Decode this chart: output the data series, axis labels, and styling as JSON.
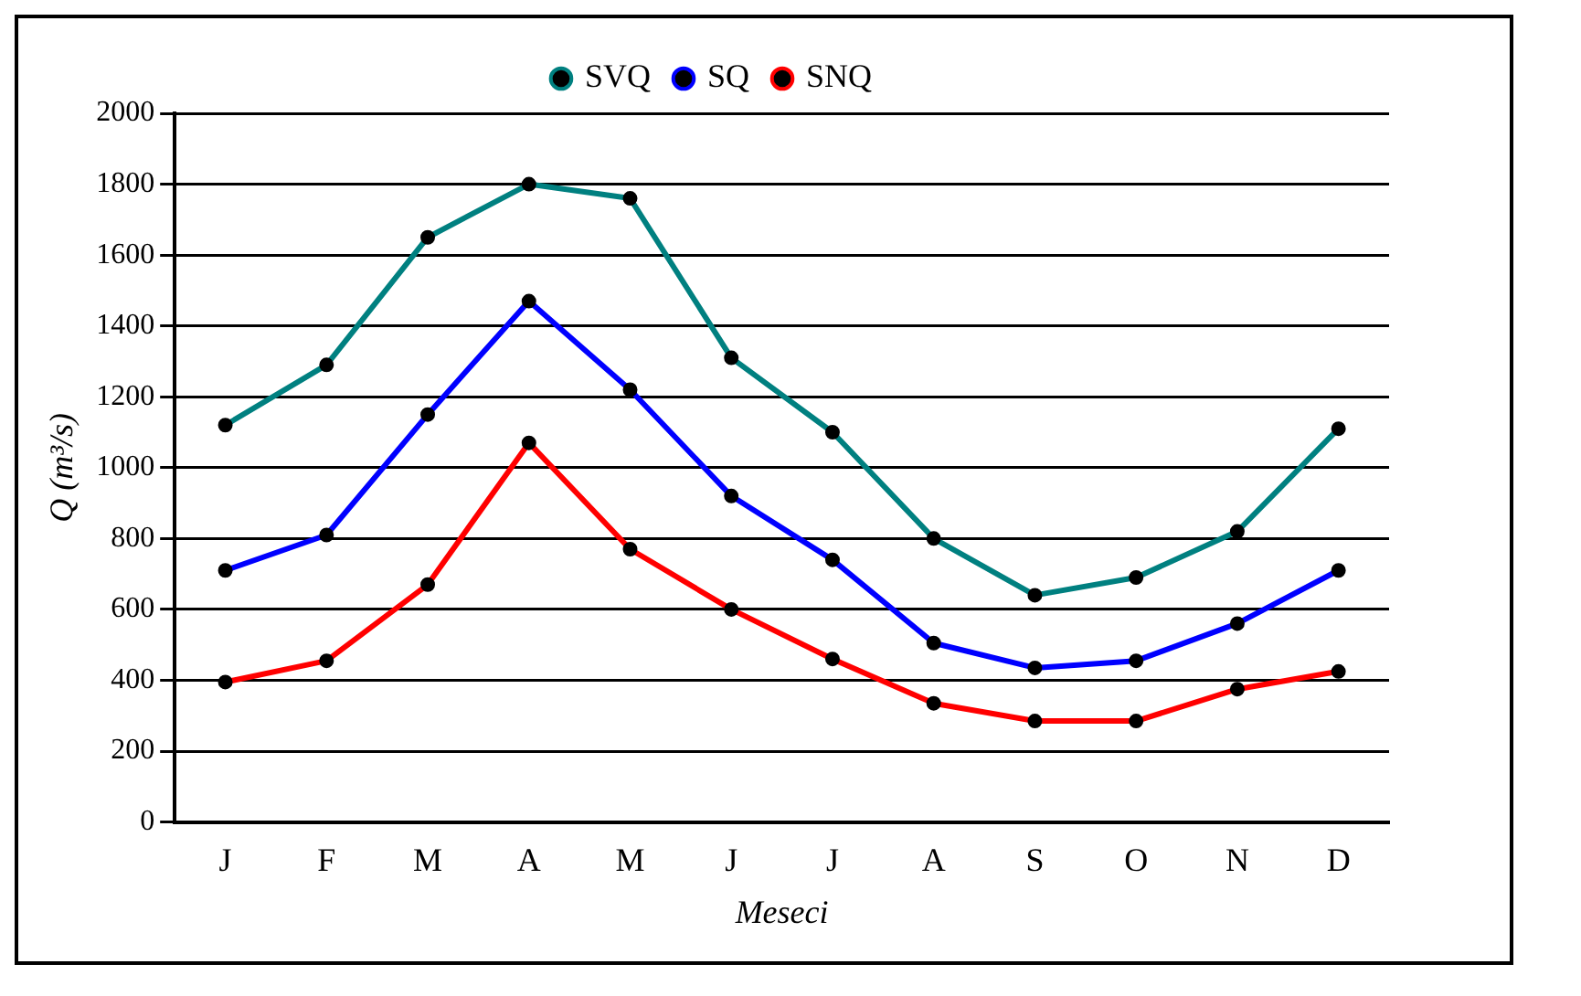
{
  "chart_data": {
    "type": "line",
    "xlabel": "Meseci",
    "ylabel": "Q (m³/s)",
    "categories": [
      "J",
      "F",
      "M",
      "A",
      "M",
      "J",
      "J",
      "A",
      "S",
      "O",
      "N",
      "D"
    ],
    "series": [
      {
        "name": "SVQ",
        "color": "#008080",
        "values": [
          1120,
          1290,
          1650,
          1800,
          1760,
          1310,
          1100,
          800,
          640,
          690,
          820,
          1110
        ]
      },
      {
        "name": "SQ",
        "color": "#0000ff",
        "values": [
          710,
          810,
          1150,
          1470,
          1220,
          920,
          740,
          505,
          435,
          455,
          560,
          710
        ]
      },
      {
        "name": "SNQ",
        "color": "#ff0000",
        "values": [
          395,
          455,
          670,
          1070,
          770,
          600,
          460,
          335,
          285,
          285,
          375,
          425
        ]
      }
    ],
    "ylim": [
      0,
      2000
    ],
    "yticks": [
      0,
      200,
      400,
      600,
      800,
      1000,
      1200,
      1400,
      1600,
      1800,
      2000
    ],
    "grid": "y",
    "legend": "top",
    "marker": "circle",
    "line_style": "solid"
  }
}
